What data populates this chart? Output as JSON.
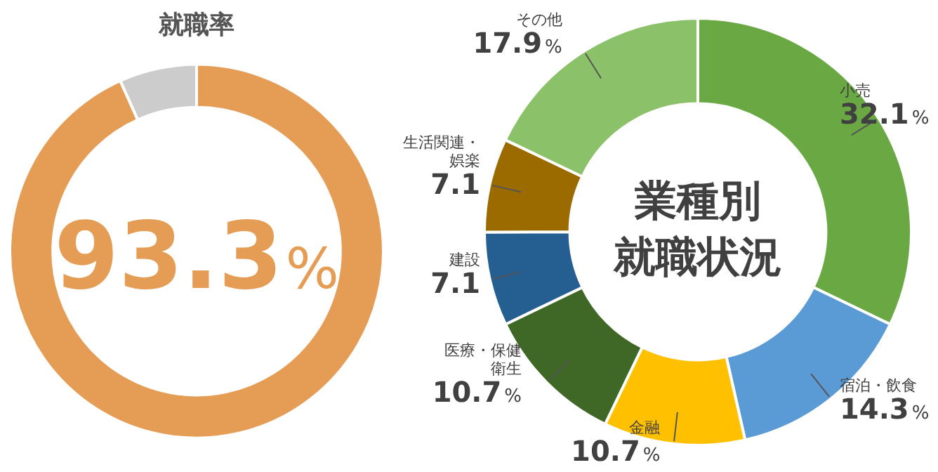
{
  "chart_data": [
    {
      "type": "donut",
      "title": "就職率",
      "categories": [
        null,
        null
      ],
      "values": [
        93.3,
        6.7
      ],
      "colors": [
        "#e59c55",
        "#cccccc"
      ],
      "value_labels": [
        "93.3%",
        null
      ],
      "legend": false
    },
    {
      "type": "donut",
      "title": "業種別就職状況",
      "categories": [
        "小売",
        "宿泊・飲食",
        "金融",
        "医療・保健衛生",
        "建設",
        "生活関連・娯楽",
        "その他"
      ],
      "values": [
        32.1,
        14.3,
        10.7,
        10.7,
        7.1,
        7.1,
        17.9
      ],
      "colors": [
        "#6aa843",
        "#5b9bd5",
        "#ffc000",
        "#3f6827",
        "#255e91",
        "#9c6b00",
        "#8bc168"
      ],
      "value_labels": [
        "32.1%",
        "14.3%",
        "10.7%",
        "10.7%",
        "7.1",
        "7.1",
        "17.9%"
      ],
      "legend": false
    }
  ]
}
